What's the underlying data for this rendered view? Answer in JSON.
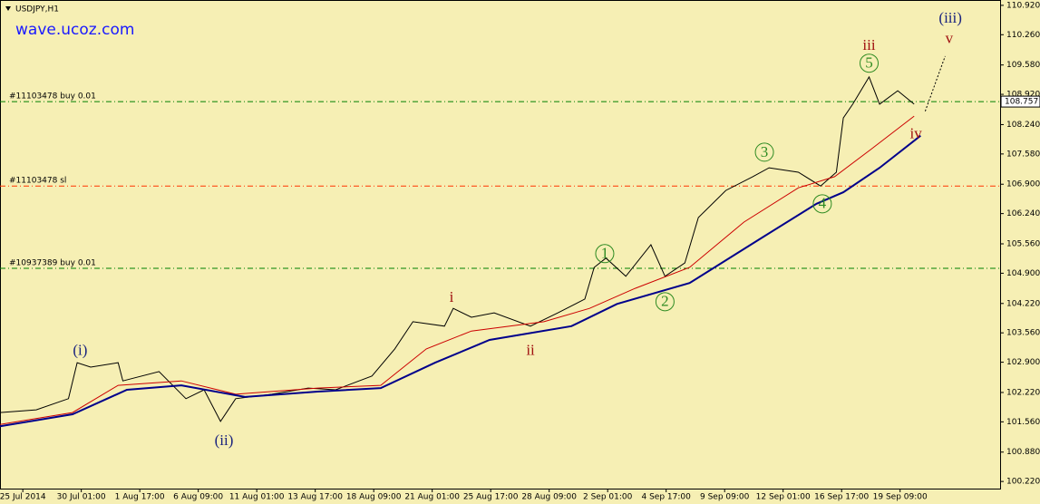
{
  "chart_data": {
    "type": "line",
    "symbol": "USDJPY,H1",
    "watermark": "wave.ucoz.com",
    "xlim": [
      -0.39,
      16.71
    ],
    "ylim": [
      100.06,
      111.04
    ],
    "xticks": [
      {
        "value": 0,
        "label": "25 Jul 2014"
      },
      {
        "value": 1,
        "label": "30 Jul 01:00"
      },
      {
        "value": 2,
        "label": "1 Aug 17:00"
      },
      {
        "value": 3,
        "label": "6 Aug 09:00"
      },
      {
        "value": 4,
        "label": "11 Aug 01:00"
      },
      {
        "value": 5,
        "label": "13 Aug 17:00"
      },
      {
        "value": 6,
        "label": "18 Aug 09:00"
      },
      {
        "value": 7,
        "label": "21 Aug 01:00"
      },
      {
        "value": 8,
        "label": "25 Aug 17:00"
      },
      {
        "value": 9,
        "label": "28 Aug 09:00"
      },
      {
        "value": 10,
        "label": "2 Sep 01:00"
      },
      {
        "value": 11,
        "label": "4 Sep 17:00"
      },
      {
        "value": 12,
        "label": "9 Sep 09:00"
      },
      {
        "value": 13,
        "label": "12 Sep 01:00"
      },
      {
        "value": 14,
        "label": "16 Sep 17:00"
      },
      {
        "value": 15,
        "label": "19 Sep 09:00"
      }
    ],
    "yticks": [
      {
        "value": 110.92,
        "label": "110.920"
      },
      {
        "value": 110.26,
        "label": "110.260"
      },
      {
        "value": 109.58,
        "label": "109.580"
      },
      {
        "value": 108.92,
        "label": "108.920"
      },
      {
        "value": 108.24,
        "label": "108.240"
      },
      {
        "value": 107.58,
        "label": "107.580"
      },
      {
        "value": 106.9,
        "label": "106.900"
      },
      {
        "value": 106.24,
        "label": "106.240"
      },
      {
        "value": 105.56,
        "label": "105.560"
      },
      {
        "value": 104.9,
        "label": "104.900"
      },
      {
        "value": 104.22,
        "label": "104.220"
      },
      {
        "value": 103.56,
        "label": "103.560"
      },
      {
        "value": 102.9,
        "label": "102.900"
      },
      {
        "value": 102.22,
        "label": "102.220"
      },
      {
        "value": 101.56,
        "label": "101.560"
      },
      {
        "value": 100.88,
        "label": "100.880"
      },
      {
        "value": 100.22,
        "label": "100.220"
      }
    ],
    "current_price": 108.757,
    "series": [
      {
        "color": "#000000",
        "width": 1,
        "x": [
          -0.39,
          0.23,
          0.78,
          0.93,
          1.16,
          1.63,
          1.71,
          2.33,
          2.79,
          3.1,
          3.38,
          3.64,
          4.26,
          4.88,
          5.35,
          5.97,
          6.36,
          6.67,
          7.21,
          7.36,
          7.67,
          8.06,
          8.68,
          9.15,
          9.61,
          9.77,
          9.97,
          10.31,
          10.74,
          10.98,
          11.32,
          11.55,
          12.02,
          12.48,
          12.76,
          13.26,
          13.64,
          13.91,
          14.03,
          14.19,
          14.47,
          14.65,
          14.96,
          15.24
        ],
        "values": [
          101.77,
          101.83,
          102.08,
          102.89,
          102.79,
          102.89,
          102.48,
          102.69,
          102.08,
          102.28,
          101.57,
          102.08,
          102.18,
          102.32,
          102.28,
          102.59,
          103.2,
          103.81,
          103.71,
          104.11,
          103.91,
          104.01,
          103.71,
          104.01,
          104.32,
          105.03,
          105.24,
          104.83,
          105.54,
          104.83,
          105.13,
          106.15,
          106.76,
          107.07,
          107.27,
          107.17,
          106.86,
          107.17,
          108.39,
          108.7,
          109.31,
          108.7,
          109.0,
          108.7
        ]
      },
      {
        "color": "#cc0000",
        "width": 1,
        "x": [
          -0.39,
          0.85,
          1.63,
          2.71,
          3.64,
          5.04,
          6.12,
          6.9,
          7.67,
          8.91,
          9.69,
          10.47,
          11.4,
          12.33,
          13.26,
          13.88,
          14.5,
          15.24
        ],
        "values": [
          101.5,
          101.77,
          102.38,
          102.48,
          102.18,
          102.32,
          102.38,
          103.2,
          103.6,
          103.81,
          104.11,
          104.56,
          105.03,
          106.05,
          106.82,
          107.07,
          107.68,
          108.43
        ]
      },
      {
        "color": "#00008b",
        "width": 2,
        "x": [
          -0.39,
          0.85,
          1.78,
          2.71,
          3.8,
          5.04,
          6.12,
          7.05,
          7.98,
          9.38,
          10.16,
          11.4,
          12.64,
          13.57,
          14.03,
          14.65,
          15.35
        ],
        "values": [
          101.46,
          101.73,
          102.28,
          102.38,
          102.12,
          102.24,
          102.32,
          102.89,
          103.4,
          103.71,
          104.21,
          104.68,
          105.7,
          106.46,
          106.72,
          107.27,
          107.99
        ]
      },
      {
        "color": "#000000",
        "width": 1,
        "dashed": true,
        "x": [
          15.43,
          15.77
        ],
        "values": [
          108.54,
          109.78
        ]
      }
    ],
    "levels": [
      {
        "label": "#11103478 buy 0.01",
        "value": 108.757,
        "color": "#008000"
      },
      {
        "label": "#11103478 sl",
        "value": 106.86,
        "color": "#ff3300"
      },
      {
        "label": "#10937389 buy 0.01",
        "value": 105.01,
        "color": "#008000"
      }
    ],
    "annotations": [
      {
        "text": "(i)",
        "x": 0.98,
        "y": 103.16,
        "color": "#1a237e"
      },
      {
        "text": "(ii)",
        "x": 3.44,
        "y": 101.14,
        "color": "#1a237e"
      },
      {
        "text": "i",
        "x": 7.33,
        "y": 104.36,
        "color": "#a01010"
      },
      {
        "text": "ii",
        "x": 8.68,
        "y": 103.16,
        "color": "#a01010"
      },
      {
        "text": "1",
        "x": 9.95,
        "y": 105.34,
        "color": "#2e8b22",
        "circled": true
      },
      {
        "text": "2",
        "x": 10.98,
        "y": 104.26,
        "color": "#2e8b22",
        "circled": true
      },
      {
        "text": "3",
        "x": 12.68,
        "y": 107.62,
        "color": "#2e8b22",
        "circled": true
      },
      {
        "text": "4",
        "x": 13.67,
        "y": 106.46,
        "color": "#2e8b22",
        "circled": true
      },
      {
        "text": "5",
        "x": 14.47,
        "y": 109.62,
        "color": "#2e8b22",
        "circled": true
      },
      {
        "text": "iii",
        "x": 14.47,
        "y": 110.02,
        "color": "#a01010"
      },
      {
        "text": "iv",
        "x": 15.27,
        "y": 108.03,
        "color": "#a01010"
      },
      {
        "text": "v",
        "x": 15.84,
        "y": 110.17,
        "color": "#a01010"
      },
      {
        "text": "(iii)",
        "x": 15.86,
        "y": 110.63,
        "color": "#1a237e"
      }
    ]
  }
}
